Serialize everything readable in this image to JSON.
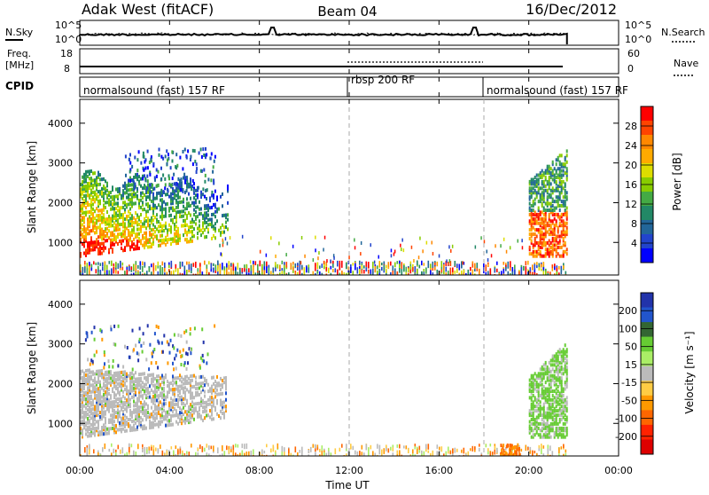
{
  "header": {
    "station": "Adak West (fitACF)",
    "beam": "Beam 04",
    "date": "16/Dec/2012"
  },
  "noise_panel": {
    "left_label": "N.Sky",
    "right_label": "N.Search",
    "left_ticks": [
      "10^5",
      "10^0"
    ],
    "right_ticks": [
      "10^5",
      "10^0"
    ]
  },
  "freq_panel": {
    "left_label_1": "Freq.",
    "left_label_2": "[MHz]",
    "left_ticks": [
      "18",
      "8"
    ],
    "right_label": "Nave",
    "right_ticks": [
      "60",
      "0"
    ]
  },
  "cpid_panel": {
    "label": "CPID",
    "segments": [
      {
        "text": "normalsound (fast) 157 RF",
        "start": "00:00",
        "end": "12:00"
      },
      {
        "text": "rbsp 200 RF",
        "start": "12:00",
        "end": "18:00"
      },
      {
        "text": "normalsound (fast) 157 RF",
        "start": "18:00",
        "end": "24:00"
      }
    ]
  },
  "colorbars": {
    "power": {
      "label": "Power [dB]",
      "ticks": [
        "28",
        "24",
        "20",
        "16",
        "12",
        "8",
        "4"
      ],
      "colors": [
        "#ff0000",
        "#ff4400",
        "#ff8800",
        "#ffaa00",
        "#dddd00",
        "#88cc00",
        "#44aa44",
        "#228866",
        "#226699",
        "#2244cc",
        "#0000ff"
      ]
    },
    "velocity": {
      "label": "Velocity [m s⁻¹]",
      "ticks": [
        "200",
        "100",
        "50",
        "15",
        "-15",
        "-50",
        "-100",
        "-200"
      ],
      "colors": [
        "#2233aa",
        "#2255cc",
        "#336633",
        "#66cc33",
        "#aaee66",
        "#bbbbbb",
        "#ffcc44",
        "#ff9900",
        "#ff6600",
        "#ff2200",
        "#dd0000"
      ]
    }
  },
  "chart_data": {
    "type": "heatmap",
    "xlabel": "Time UT",
    "x_ticks": [
      "00:00",
      "04:00",
      "08:00",
      "12:00",
      "16:00",
      "20:00",
      "00:00"
    ],
    "xlim": [
      0,
      24
    ],
    "ylabel": "Slant Range [km]",
    "y_ticks": [
      1000,
      2000,
      3000,
      4000
    ],
    "ylim": [
      180,
      4600
    ],
    "data_end_hour": 21.7,
    "noise_sky_spikes_hours": [
      8.6,
      17.6
    ],
    "vertical_dashed_lines_hours": [
      12,
      18
    ]
  }
}
